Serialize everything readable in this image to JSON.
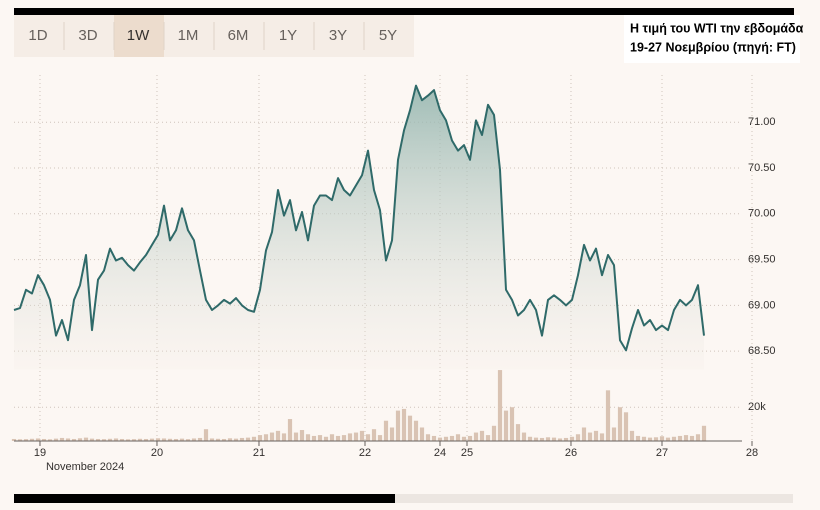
{
  "tabs": [
    "1D",
    "3D",
    "1W",
    "1M",
    "6M",
    "1Y",
    "3Y",
    "5Y"
  ],
  "selected_tab": 2,
  "caption": [
    "Η τιμή του WTI την εβδομάδα",
    "19-27 Νοεμβρίου (πηγή: FT)"
  ],
  "chart_data": {
    "type": "line",
    "color": "#2f6a69",
    "volume_color": "#d9c3b3",
    "values": [
      68.95,
      68.97,
      69.17,
      69.13,
      69.33,
      69.22,
      69.06,
      68.67,
      68.84,
      68.62,
      69.06,
      69.22,
      69.55,
      68.73,
      69.28,
      69.38,
      69.62,
      69.49,
      69.52,
      69.44,
      69.38,
      69.47,
      69.55,
      69.66,
      69.77,
      70.09,
      69.71,
      69.82,
      70.06,
      69.82,
      69.71,
      69.38,
      69.06,
      68.95,
      69.0,
      69.06,
      69.02,
      69.08,
      69.0,
      68.95,
      68.93,
      69.17,
      69.6,
      69.8,
      70.26,
      69.98,
      70.15,
      69.82,
      70.02,
      69.71,
      70.09,
      70.2,
      70.2,
      70.15,
      70.39,
      70.26,
      70.2,
      70.31,
      70.42,
      70.69,
      70.26,
      70.04,
      69.49,
      69.71,
      70.59,
      70.91,
      71.13,
      71.4,
      71.24,
      71.29,
      71.35,
      71.13,
      71.02,
      70.8,
      70.69,
      70.75,
      70.59,
      71.02,
      70.86,
      71.19,
      71.08,
      70.48,
      69.17,
      69.06,
      68.89,
      68.95,
      69.06,
      68.95,
      68.67,
      69.06,
      69.11,
      69.06,
      69.0,
      69.06,
      69.33,
      69.66,
      69.49,
      69.62,
      69.33,
      69.55,
      69.44,
      68.62,
      68.51,
      68.75,
      68.95,
      68.78,
      68.84,
      68.73,
      68.78,
      68.73,
      68.95,
      69.06,
      69.0,
      69.06,
      69.22,
      68.67
    ],
    "volume": [
      1200,
      1000,
      1100,
      1300,
      1500,
      1200,
      1000,
      1400,
      1800,
      1500,
      1200,
      1600,
      2000,
      1400,
      1200,
      1100,
      1300,
      1500,
      1200,
      1000,
      1100,
      1300,
      1200,
      1400,
      1600,
      1500,
      1300,
      1200,
      1400,
      1100,
      1500,
      1800,
      7000,
      1500,
      1300,
      1200,
      1600,
      1400,
      1800,
      2000,
      2500,
      3500,
      4000,
      5000,
      6000,
      4500,
      13000,
      5000,
      6500,
      4000,
      3000,
      3500,
      2500,
      4000,
      3000,
      3500,
      4500,
      5000,
      6000,
      4000,
      7000,
      3500,
      12000,
      8000,
      18000,
      19000,
      15000,
      12000,
      8000,
      4000,
      3000,
      2000,
      2500,
      3000,
      4000,
      2500,
      3000,
      5000,
      6000,
      3500,
      9000,
      42000,
      18000,
      20000,
      10000,
      5000,
      2500,
      2000,
      1800,
      2200,
      2000,
      1500,
      1800,
      2500,
      4000,
      8000,
      5000,
      6000,
      4500,
      30000,
      8000,
      20000,
      17000,
      6000,
      3000,
      2500,
      2000,
      2200,
      2800,
      2000,
      2500,
      3000,
      3500,
      3000,
      4000,
      9000
    ],
    "xlim": [
      0,
      123
    ],
    "xticks": [
      {
        "value": 4.33,
        "label": "19"
      },
      {
        "value": 23.83,
        "label": "20"
      },
      {
        "value": 40.83,
        "label": "21"
      },
      {
        "value": 58.5,
        "label": "22"
      },
      {
        "value": 71,
        "label": "24"
      },
      {
        "value": 75.5,
        "label": "25"
      },
      {
        "value": 92.83,
        "label": "26"
      },
      {
        "value": 108,
        "label": "27"
      },
      {
        "value": 123,
        "label": "28"
      }
    ],
    "x_sublabel": "November 2024",
    "ylim": [
      68.3,
      71.57
    ],
    "yticks": [
      {
        "value": 68.5,
        "label": "68.50"
      },
      {
        "value": 69,
        "label": "69.00"
      },
      {
        "value": 69.5,
        "label": "69.50"
      },
      {
        "value": 70,
        "label": "70.00"
      },
      {
        "value": 70.5,
        "label": "70.50"
      },
      {
        "value": 71,
        "label": "71.00"
      }
    ],
    "vlim": [
      0,
      45000
    ],
    "vticks": [
      {
        "value": 20000,
        "label": "20k"
      }
    ],
    "grid": true
  }
}
